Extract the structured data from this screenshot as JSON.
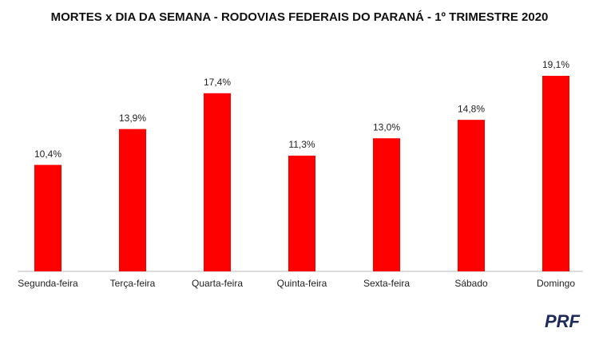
{
  "chart_data": {
    "type": "bar",
    "title": "MORTES x DIA DA SEMANA - RODOVIAS FEDERAIS DO PARANÁ - 1º TRIMESTRE 2020",
    "categories": [
      "Segunda-feira",
      "Terça-feira",
      "Quarta-feira",
      "Quinta-feira",
      "Sexta-feira",
      "Sábado",
      "Domingo"
    ],
    "values": [
      10.4,
      13.9,
      17.4,
      11.3,
      13.0,
      14.8,
      19.1
    ],
    "value_labels": [
      "10,4%",
      "13,9%",
      "17,4%",
      "11,3%",
      "13,0%",
      "14,8%",
      "19,1%"
    ],
    "color": "#ff0000"
  },
  "logo": "PRF"
}
